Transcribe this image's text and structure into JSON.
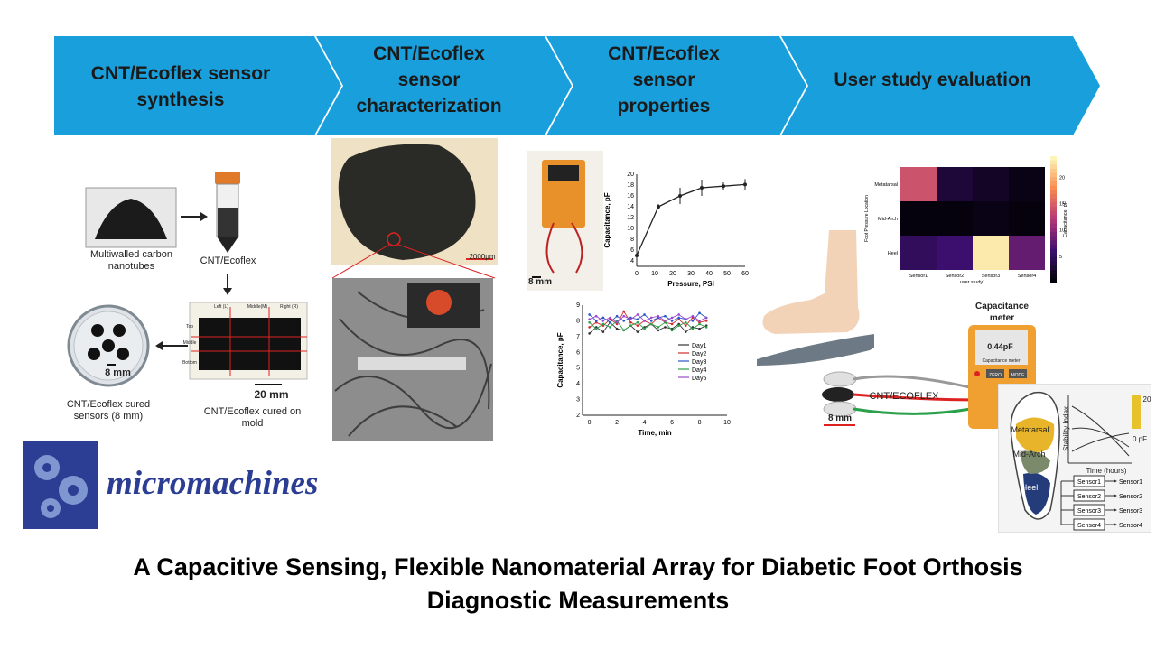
{
  "stages": [
    {
      "label_lines": [
        "CNT/Ecoflex sensor",
        "synthesis"
      ]
    },
    {
      "label_lines": [
        "CNT/Ecoflex",
        "sensor",
        "characterization"
      ]
    },
    {
      "label_lines": [
        "CNT/Ecoflex",
        "sensor",
        "properties"
      ]
    },
    {
      "label_lines": [
        "User study evaluation"
      ]
    }
  ],
  "synthesis": {
    "nanotubes_label": "Multiwalled carbon nanotubes",
    "vial_label": "CNT/Ecoflex",
    "mold_label": "CNT/Ecoflex cured on mold",
    "mold_scale": "20 mm",
    "mold_cols": [
      "Left (L)",
      "Middle(M)",
      "Right (R)"
    ],
    "mold_rows": [
      "Top",
      "Middle",
      "Bottom"
    ],
    "dish_label": "CNT/Ecoflex cured sensors (8 mm)",
    "dish_scale": "8 mm"
  },
  "characterization": {
    "micro_scale": "2000μm"
  },
  "properties": {
    "device_scale": "8 mm",
    "pressure_chart": {
      "type": "line",
      "x": [
        0,
        12,
        24,
        36,
        48,
        60
      ],
      "values": [
        5,
        14,
        16,
        17.5,
        17.8,
        18.1
      ],
      "errors": [
        0.5,
        0.5,
        1.5,
        1.5,
        0.7,
        1
      ],
      "xlabel": "Pressure, PSI",
      "ylabel": "Capacitance, pF",
      "xticks": [
        0,
        10,
        20,
        30,
        40,
        50,
        60
      ],
      "yticks": [
        4,
        6,
        8,
        10,
        12,
        14,
        16,
        18,
        20
      ],
      "xlim": [
        0,
        60
      ],
      "ylim": [
        3,
        20
      ]
    },
    "time_chart": {
      "type": "line",
      "xlabel": "Time, min",
      "ylabel": "Capacitance, pF",
      "xticks": [
        0,
        2,
        4,
        6,
        8,
        10
      ],
      "yticks": [
        2,
        3,
        4,
        5,
        6,
        7,
        8,
        9
      ],
      "xlim": [
        -0.5,
        10
      ],
      "ylim": [
        2,
        9
      ],
      "x": [
        0,
        0.5,
        1,
        1.5,
        2,
        2.5,
        3,
        3.5,
        4,
        4.5,
        5,
        5.5,
        6,
        6.5,
        7,
        7.5,
        8,
        8.5
      ],
      "series": [
        {
          "name": "Day1",
          "color": "#333333",
          "values": [
            7.2,
            7.6,
            7.3,
            7.9,
            7.5,
            7.4,
            7.7,
            7.3,
            7.6,
            7.8,
            7.4,
            7.6,
            7.5,
            7.8,
            7.3,
            7.6,
            7.5,
            7.7
          ]
        },
        {
          "name": "Day2",
          "color": "#d22a2a",
          "values": [
            7.6,
            7.9,
            7.7,
            8.1,
            7.8,
            8.6,
            7.9,
            7.7,
            8.0,
            7.8,
            8.2,
            7.9,
            7.8,
            8.1,
            7.7,
            8.2,
            7.9,
            8.0
          ]
        },
        {
          "name": "Day3",
          "color": "#2a55c8",
          "values": [
            8.4,
            8.0,
            8.2,
            7.9,
            8.3,
            8.0,
            8.2,
            8.1,
            8.4,
            8.0,
            8.2,
            8.3,
            8.0,
            8.2,
            8.1,
            8.0,
            8.5,
            8.2
          ]
        },
        {
          "name": "Day4",
          "color": "#2aa04a",
          "values": [
            7.9,
            7.5,
            7.8,
            7.6,
            8.0,
            7.4,
            7.7,
            7.9,
            7.5,
            7.8,
            7.6,
            7.9,
            7.4,
            7.7,
            7.9,
            7.5,
            7.8,
            7.6
          ]
        },
        {
          "name": "Day5",
          "color": "#9a4ad0",
          "values": [
            8.1,
            8.3,
            8.0,
            8.2,
            7.9,
            8.3,
            8.1,
            8.4,
            8.0,
            8.2,
            8.3,
            8.0,
            8.2,
            8.4,
            8.1,
            8.3,
            8.0,
            8.2
          ]
        }
      ]
    }
  },
  "user_study": {
    "heatmap": {
      "type": "heatmap",
      "rows": [
        "Metatarsal",
        "Mid-Arch",
        "Heel"
      ],
      "cols": [
        "Sensor1",
        "Sensor2",
        "Sensor3",
        "Sensor4"
      ],
      "values": [
        [
          14,
          3,
          2,
          1
        ],
        [
          0.5,
          0.5,
          1,
          0.5
        ],
        [
          5,
          6,
          23,
          8
        ]
      ],
      "ylabel": "Foot Pressure Location",
      "xlabel": "user study1",
      "colorbar_label": "Capacitance, pF",
      "colorbar_ticks": [
        5,
        10,
        15,
        20
      ],
      "vmin": 0,
      "vmax": 24
    },
    "meter_title_lines": [
      "Capacitance",
      "meter"
    ],
    "meter_reading": "0.44pF",
    "meter_mode": "Capacitance meter",
    "meter_buttons": [
      "ZERO",
      "MODE"
    ],
    "cable_label": "CNT/ECOFLEX",
    "cable_scale": "8 mm",
    "foot_regions": [
      "Metatarsal",
      "Mid-Arch",
      "Heel"
    ],
    "stability": {
      "ylabel": "Stability Index",
      "xlabel": "Time (hours)",
      "colorbar_top": "20",
      "colorbar_bottom": "0 pF"
    },
    "sensors_in": [
      "Sensor1",
      "Sensor2",
      "Sensor3",
      "Sensor4"
    ],
    "sensors_out": [
      "Sensor1",
      "Sensor2",
      "Sensor3",
      "Sensor4"
    ]
  },
  "journal": "micromachines",
  "title_lines": [
    "A Capacitive Sensing, Flexible Nanomaterial Array for Diabetic Foot Orthosis",
    "Diagnostic Measurements"
  ],
  "colors": {
    "chevron": "#19a0dc",
    "journal": "#2c3e94",
    "logo_bg": "#2c3e94"
  }
}
